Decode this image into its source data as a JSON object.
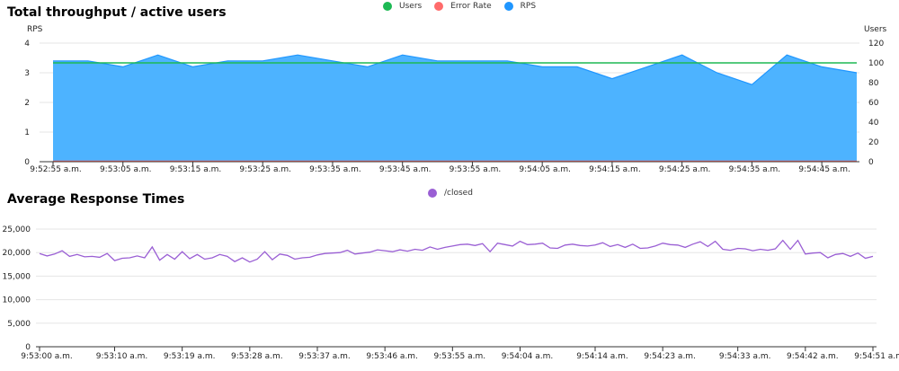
{
  "chart_data": [
    {
      "type": "area",
      "title": "Total throughput / active users",
      "legend": {
        "placement": "top-center"
      },
      "y_left": {
        "label": "RPS",
        "ticks": [
          "0",
          "1",
          "2",
          "3",
          "4"
        ],
        "range": [
          0,
          4
        ]
      },
      "y_right": {
        "label": "Users",
        "ticks": [
          "0",
          "20",
          "40",
          "60",
          "80",
          "100",
          "120"
        ],
        "range": [
          0,
          120
        ]
      },
      "x_ticks": [
        "9:52:55 a.m.",
        "9:53:05 a.m.",
        "9:53:15 a.m.",
        "9:53:25 a.m.",
        "9:53:35 a.m.",
        "9:53:45 a.m.",
        "9:53:55 a.m.",
        "9:54:05 a.m.",
        "9:54:15 a.m.",
        "9:54:25 a.m.",
        "9:54:35 a.m.",
        "9:54:45 a.m."
      ],
      "x_range_seconds": [
        0,
        115
      ],
      "series": [
        {
          "name": "Users",
          "color": "#1db954",
          "axis": "right",
          "t": [
            0,
            115
          ],
          "values": [
            100,
            100
          ]
        },
        {
          "name": "Error Rate",
          "color": "#ff6b6b",
          "axis": "left",
          "t": [
            0,
            115
          ],
          "values": [
            0,
            0
          ]
        },
        {
          "name": "RPS",
          "color": "#1f96ff",
          "fill": "#4db3ff",
          "axis": "left",
          "t": [
            0,
            5,
            10,
            15,
            20,
            25,
            30,
            35,
            40,
            45,
            50,
            55,
            60,
            65,
            70,
            75,
            80,
            85,
            90,
            95,
            100,
            105,
            110,
            115
          ],
          "values": [
            3.4,
            3.4,
            3.2,
            3.6,
            3.2,
            3.4,
            3.4,
            3.6,
            3.4,
            3.2,
            3.6,
            3.4,
            3.4,
            3.4,
            3.2,
            3.2,
            2.8,
            3.2,
            3.6,
            3.0,
            2.6,
            3.6,
            3.2,
            3.0
          ]
        }
      ]
    },
    {
      "type": "line",
      "title": "Average Response Times",
      "legend": {
        "placement": "top-center"
      },
      "y": {
        "ticks": [
          "0",
          "5,000",
          "10,000",
          "15,000",
          "20,000",
          "25,000"
        ],
        "range": [
          0,
          25000
        ]
      },
      "x_ticks": [
        "9:53:00 a.m.",
        "9:53:10 a.m.",
        "9:53:19 a.m.",
        "9:53:28 a.m.",
        "9:53:37 a.m.",
        "9:53:46 a.m.",
        "9:53:55 a.m.",
        "9:54:04 a.m.",
        "9:54:14 a.m.",
        "9:54:23 a.m.",
        "9:54:33 a.m.",
        "9:54:42 a.m.",
        "9:54:51 a.m."
      ],
      "x_tick_seconds": [
        0,
        10,
        19,
        28,
        37,
        46,
        55,
        64,
        74,
        83,
        93,
        102,
        111
      ],
      "x_range_seconds": [
        0,
        111
      ],
      "series": [
        {
          "name": "/closed",
          "color": "#9a5fd4",
          "values": [
            19800,
            19300,
            19700,
            20400,
            19200,
            19600,
            19100,
            19200,
            19000,
            19800,
            18300,
            18800,
            18900,
            19300,
            18900,
            21200,
            18400,
            19600,
            18600,
            20200,
            18700,
            19600,
            18600,
            18900,
            19600,
            19200,
            18100,
            18900,
            18000,
            18600,
            20200,
            18500,
            19700,
            19400,
            18600,
            18900,
            19000,
            19500,
            19800,
            19900,
            20000,
            20500,
            19700,
            19900,
            20100,
            20600,
            20400,
            20200,
            20600,
            20300,
            20700,
            20500,
            21200,
            20700,
            21100,
            21400,
            21700,
            21800,
            21500,
            21900,
            20200,
            22000,
            21700,
            21400,
            22400,
            21700,
            21800,
            22000,
            21000,
            20900,
            21600,
            21800,
            21500,
            21400,
            21600,
            22100,
            21300,
            21700,
            21100,
            21800,
            20900,
            21000,
            21400,
            22000,
            21700,
            21600,
            21100,
            21800,
            22300,
            21300,
            22400,
            20700,
            20500,
            20900,
            20800,
            20400,
            20700,
            20500,
            20800,
            22600,
            20700,
            22600,
            19700,
            19900,
            20000,
            18900,
            19600,
            19800,
            19200,
            19900,
            18800,
            19200
          ]
        }
      ]
    }
  ]
}
